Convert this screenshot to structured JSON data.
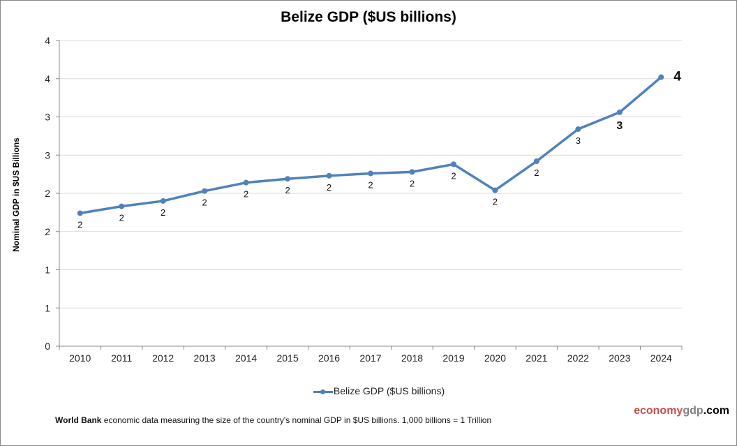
{
  "chart_data": {
    "type": "line",
    "title": "Belize GDP ($US billions)",
    "xlabel": "",
    "ylabel": "Nominal GDP in $US Billions",
    "categories": [
      "2010",
      "2011",
      "2012",
      "2013",
      "2014",
      "2015",
      "2016",
      "2017",
      "2018",
      "2019",
      "2020",
      "2021",
      "2022",
      "2023",
      "2024"
    ],
    "series": [
      {
        "name": "Belize GDP ($US billions)",
        "values": [
          1.74,
          1.83,
          1.9,
          2.03,
          2.14,
          2.19,
          2.23,
          2.26,
          2.28,
          2.38,
          2.04,
          2.42,
          2.84,
          3.06,
          3.52
        ],
        "data_labels": [
          "2",
          "2",
          "2",
          "2",
          "2",
          "2",
          "2",
          "2",
          "2",
          "2",
          "2",
          "2",
          "3",
          "3",
          "4"
        ],
        "color": "#4f81bd"
      }
    ],
    "ylim": [
      0,
      4
    ],
    "yticks": [
      0,
      0.5,
      1,
      1.5,
      2,
      2.5,
      3,
      3.5,
      4
    ],
    "ytick_labels": [
      "0",
      "1",
      "1",
      "2",
      "2",
      "3",
      "3",
      "4",
      "4"
    ],
    "grid": true,
    "legend": "bottom"
  },
  "footnote": {
    "bold": "World Bank",
    "text": " economic data  measuring the size of the country's nominal  GDP in $US billions. 1,000 billions = 1 Trillion"
  },
  "logo": {
    "part1": "economy",
    "part2": "gdp",
    "part3": ".com",
    "colors": [
      "#c0504d",
      "#808080",
      "#000000"
    ]
  }
}
